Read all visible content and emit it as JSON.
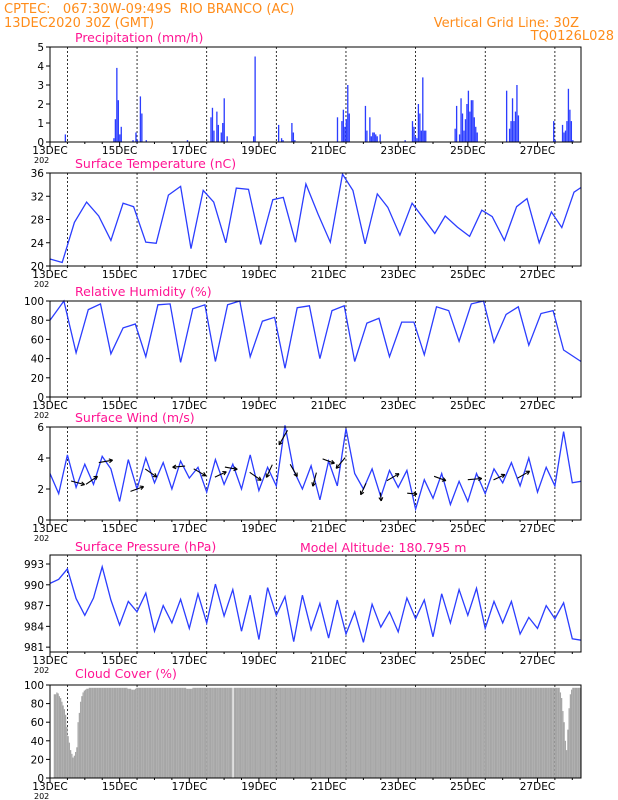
{
  "header": {
    "left_line1": "CPTEC:   067:30W-09:49S  RIO BRANCO (AC)",
    "left_line2": "13DEC2020 30Z (GMT)",
    "right_line1": "Vertical Grid Line: 30Z",
    "right_line2": "TQ0126L028",
    "color": "#ff8c1a"
  },
  "colors": {
    "title": "#ff1493",
    "series": "#2b3dff",
    "cloud": "#a6a6a6",
    "axis": "#000000",
    "grid": "#000000"
  },
  "x_axis": {
    "ticks": [
      "13DEC",
      "15DEC",
      "17DEC",
      "19DEC",
      "21DEC",
      "23DEC",
      "25DEC",
      "27DEC"
    ],
    "year_fragment": "202"
  },
  "chart_data": [
    {
      "type": "bar",
      "title": "Precipitation  (mm/h)",
      "ylim": [
        0,
        5
      ],
      "yticks": [
        "0",
        "1",
        "2",
        "3",
        "4",
        "5"
      ],
      "start": "13DEC 00Z",
      "end": "28DEC 06Z",
      "values": [
        0,
        0,
        0,
        0,
        0,
        0,
        0,
        0,
        0,
        0,
        0.4,
        0,
        0,
        0,
        0,
        0,
        0,
        0,
        0,
        0,
        0,
        0,
        0,
        0,
        0,
        0,
        0,
        0,
        0,
        0,
        0,
        0,
        0,
        0,
        0,
        0,
        0,
        0,
        0,
        0,
        0,
        0,
        0,
        0.2,
        1.2,
        3.9,
        2.2,
        0.4,
        0.8,
        0,
        0,
        0,
        0,
        0,
        0,
        0,
        0.1,
        0,
        0.5,
        0.1,
        0,
        2.4,
        1.5,
        0,
        0,
        0.1,
        0,
        0,
        0,
        0,
        0,
        0,
        0,
        0,
        0,
        0,
        0,
        0,
        0,
        0,
        0,
        0,
        0,
        0,
        0,
        0,
        0,
        0,
        0,
        0,
        0,
        0,
        0,
        0.1,
        0,
        0,
        0,
        0,
        0,
        0,
        0,
        0,
        0,
        0,
        0,
        0,
        0,
        0,
        0,
        1.3,
        1.8,
        0.6,
        0,
        1.6,
        0.9,
        0,
        0.5,
        1.0,
        2.3,
        0,
        0.3,
        0,
        0,
        0,
        0,
        0,
        0,
        0,
        0,
        0,
        0,
        0,
        0,
        0,
        0,
        0,
        0,
        0,
        0.3,
        4.5,
        0,
        0,
        0,
        0,
        0,
        0,
        0,
        0,
        0,
        0,
        0,
        0,
        0,
        0,
        0,
        0.9,
        0,
        0.2,
        0.1,
        0,
        0,
        0,
        0,
        0,
        1.0,
        0.5,
        0.1,
        0,
        0,
        0,
        0,
        0,
        0,
        0,
        0,
        0,
        0,
        0,
        0,
        0,
        0,
        0,
        0,
        0,
        0,
        0,
        0,
        0,
        0,
        0,
        0,
        0,
        0,
        0,
        0,
        1.3,
        0,
        0,
        1.1,
        1.7,
        0.8,
        1.2,
        3.0,
        1.5,
        0,
        0,
        0,
        0,
        0,
        0,
        0,
        0,
        0,
        0,
        1.9,
        0.6,
        0,
        1.3,
        0.3,
        0.5,
        0.5,
        0.4,
        0.3,
        0,
        0.4,
        0,
        0,
        0,
        0,
        0,
        0,
        0,
        0,
        0,
        0,
        0,
        0,
        0,
        0,
        0,
        0,
        0.1,
        0,
        0,
        0,
        0,
        1.1,
        0.8,
        0.3,
        0.2,
        2.0,
        1.5,
        0.6,
        3.4,
        0.6,
        0.6,
        0,
        0,
        0,
        0,
        0,
        0,
        0,
        0,
        0,
        0,
        0,
        0,
        0,
        0,
        0,
        0,
        0,
        0,
        0,
        0.7,
        1.9,
        0,
        0.4,
        2.3,
        1.5,
        0.6,
        1.2,
        2.0,
        2.7,
        1.6,
        2.2,
        2.2,
        1.3,
        0.8,
        0.5,
        0,
        0,
        0,
        0,
        0,
        0,
        0,
        0,
        0,
        0,
        0,
        0,
        0,
        0,
        0,
        0,
        0,
        0,
        0,
        2.7,
        0,
        0.7,
        1.1,
        2.3,
        1.1,
        1.6,
        3.0,
        1.4,
        0,
        0,
        0,
        0,
        0,
        0,
        0,
        0,
        0,
        0,
        0,
        0,
        0,
        0,
        0,
        0,
        0,
        0,
        0,
        0,
        0,
        0,
        0,
        1.1,
        0.1,
        0,
        0,
        0,
        0,
        0.9,
        0.5,
        0.6,
        1.1,
        2.8,
        1.7,
        1.1,
        0.1,
        0,
        0,
        0,
        0,
        0
      ]
    },
    {
      "type": "line",
      "title": "Surface Temperature  (nC)",
      "ylim": [
        20,
        36
      ],
      "yticks": [
        "20",
        "24",
        "28",
        "32",
        "36"
      ],
      "x_days": [
        0,
        0.35,
        0.7,
        1.05,
        1.4,
        1.75,
        2.1,
        2.4,
        2.75,
        3.05,
        3.4,
        3.75,
        4.05,
        4.4,
        4.7,
        5.05,
        5.35,
        5.7,
        6.05,
        6.4,
        6.7,
        7.05,
        7.35,
        7.7,
        8.05,
        8.4,
        8.7,
        9.05,
        9.4,
        9.7,
        10.05,
        10.4,
        10.7,
        11.05,
        11.35,
        11.7,
        12.05,
        12.4,
        12.7,
        13.05,
        13.4,
        13.7,
        14.05,
        14.4,
        14.7,
        15.05,
        15.25
      ],
      "values": [
        21.2,
        20.6,
        27.5,
        31.0,
        28.6,
        24.4,
        30.8,
        30.2,
        24.1,
        23.9,
        32.2,
        33.7,
        23.0,
        33.0,
        31.0,
        24.0,
        33.4,
        33.2,
        23.7,
        31.4,
        31.8,
        24.1,
        34.1,
        28.9,
        24.1,
        35.8,
        33.0,
        23.8,
        32.4,
        30.1,
        25.3,
        30.8,
        28.4,
        25.6,
        28.6,
        26.7,
        25.1,
        29.6,
        28.5,
        24.4,
        30.2,
        31.6,
        24.0,
        29.3,
        26.6,
        32.7,
        33.5
      ]
    },
    {
      "type": "line",
      "title": "Relative Humidity  (%)",
      "ylim": [
        0,
        100
      ],
      "yticks": [
        "0",
        "20",
        "40",
        "60",
        "80",
        "100"
      ],
      "x_days": [
        0,
        0.4,
        0.75,
        1.1,
        1.45,
        1.75,
        2.1,
        2.45,
        2.75,
        3.1,
        3.45,
        3.75,
        4.1,
        4.45,
        4.75,
        5.1,
        5.45,
        5.75,
        6.1,
        6.45,
        6.75,
        7.1,
        7.45,
        7.75,
        8.1,
        8.45,
        8.75,
        9.1,
        9.45,
        9.75,
        10.1,
        10.45,
        10.75,
        11.1,
        11.45,
        11.75,
        12.1,
        12.45,
        12.75,
        13.1,
        13.45,
        13.75,
        14.1,
        14.45,
        14.75,
        15.25
      ],
      "values": [
        80,
        100,
        46,
        91,
        97,
        45,
        72,
        76,
        42,
        96,
        97,
        36,
        92,
        96,
        37,
        96,
        100,
        42,
        79,
        83,
        30,
        93,
        95,
        40,
        90,
        95,
        37,
        77,
        82,
        42,
        78,
        78,
        44,
        94,
        90,
        58,
        97,
        100,
        57,
        86,
        94,
        54,
        87,
        90,
        49,
        37
      ]
    },
    {
      "type": "line",
      "title": "Surface Wind  (m/s)",
      "ylim": [
        0,
        6
      ],
      "yticks": [
        "0",
        "2",
        "4",
        "6"
      ],
      "x_days": [
        0,
        0.25,
        0.5,
        0.75,
        1.0,
        1.25,
        1.5,
        1.75,
        2.0,
        2.25,
        2.5,
        2.75,
        3.0,
        3.25,
        3.5,
        3.75,
        4.0,
        4.25,
        4.5,
        4.75,
        5.0,
        5.25,
        5.5,
        5.75,
        6.0,
        6.25,
        6.5,
        6.75,
        7.0,
        7.25,
        7.5,
        7.75,
        8.0,
        8.25,
        8.5,
        8.75,
        9.0,
        9.25,
        9.5,
        9.75,
        10.0,
        10.25,
        10.5,
        10.75,
        11.0,
        11.25,
        11.5,
        11.75,
        12.0,
        12.25,
        12.5,
        12.75,
        13.0,
        13.25,
        13.5,
        13.75,
        14.0,
        14.25,
        14.5,
        14.75,
        15.0,
        15.25
      ],
      "values": [
        3.0,
        1.7,
        4.2,
        2.1,
        3.6,
        2.3,
        4.1,
        3.3,
        1.2,
        3.9,
        2.0,
        4.0,
        2.4,
        3.7,
        2.0,
        3.8,
        2.7,
        3.4,
        1.8,
        3.9,
        2.3,
        3.6,
        2.0,
        4.2,
        1.9,
        3.4,
        2.2,
        6.1,
        3.2,
        2.0,
        3.5,
        1.3,
        3.8,
        2.2,
        5.9,
        3.0,
        2.0,
        3.3,
        1.5,
        3.2,
        2.1,
        3.2,
        0.7,
        2.6,
        1.4,
        3.0,
        1.0,
        2.5,
        1.2,
        3.0,
        1.7,
        3.3,
        2.4,
        3.7,
        2.2,
        4.0,
        1.8,
        3.4,
        2.2,
        5.7,
        2.4,
        2.5
      ],
      "arrows": [
        [
          0.8,
          285,
          1.0
        ],
        [
          1.2,
          235,
          1.0
        ],
        [
          1.6,
          260,
          1.0
        ],
        [
          2.5,
          250,
          1.0
        ],
        [
          2.9,
          305,
          1.0
        ],
        [
          3.7,
          85,
          0.9
        ],
        [
          4.3,
          300,
          1.0
        ],
        [
          4.9,
          245,
          0.9
        ],
        [
          5.2,
          280,
          0.9
        ],
        [
          5.9,
          305,
          1.0
        ],
        [
          6.3,
          25,
          1.0
        ],
        [
          6.7,
          30,
          1.2
        ],
        [
          7.0,
          330,
          1.0
        ],
        [
          7.6,
          15,
          1.0
        ],
        [
          8.0,
          290,
          0.9
        ],
        [
          8.35,
          40,
          1.0
        ],
        [
          9.0,
          25,
          0.9
        ],
        [
          9.5,
          355,
          0.6
        ],
        [
          9.85,
          240,
          1.0
        ],
        [
          10.4,
          275,
          0.7
        ],
        [
          11.2,
          290,
          0.9
        ],
        [
          12.2,
          265,
          1.0
        ],
        [
          12.9,
          245,
          0.9
        ],
        [
          13.6,
          240,
          1.0
        ]
      ]
    },
    {
      "type": "line",
      "title": "Surface Pressure  (hPa)",
      "ylim": [
        980.3,
        994.3
      ],
      "yticks": [
        "981",
        "984",
        "987",
        "990",
        "993"
      ],
      "x_days": [
        0,
        0.25,
        0.5,
        0.75,
        1.0,
        1.25,
        1.5,
        1.75,
        2.0,
        2.25,
        2.5,
        2.75,
        3.0,
        3.25,
        3.5,
        3.75,
        4.0,
        4.25,
        4.5,
        4.75,
        5.0,
        5.25,
        5.5,
        5.75,
        6.0,
        6.25,
        6.5,
        6.75,
        7.0,
        7.25,
        7.5,
        7.75,
        8.0,
        8.25,
        8.5,
        8.75,
        9.0,
        9.25,
        9.5,
        9.75,
        10.0,
        10.25,
        10.5,
        10.75,
        11.0,
        11.25,
        11.5,
        11.75,
        12.0,
        12.25,
        12.5,
        12.75,
        13.0,
        13.25,
        13.5,
        13.75,
        14.0,
        14.25,
        14.5,
        14.75,
        15.0,
        15.25
      ],
      "values": [
        990.2,
        990.8,
        992.3,
        988.0,
        985.6,
        988.1,
        992.6,
        987.8,
        984.2,
        987.6,
        986.1,
        988.8,
        983.3,
        987.0,
        984.5,
        987.9,
        983.7,
        988.7,
        984.5,
        990.1,
        985.5,
        989.3,
        983.3,
        988.5,
        982.1,
        989.6,
        985.6,
        988.3,
        981.8,
        988.5,
        983.5,
        987.3,
        982.3,
        987.8,
        982.9,
        986.1,
        981.7,
        987.2,
        983.9,
        986.1,
        983.2,
        988.1,
        985.1,
        987.8,
        982.5,
        988.7,
        984.5,
        989.3,
        985.6,
        989.5,
        983.7,
        987.6,
        984.5,
        987.6,
        982.9,
        985.3,
        983.7,
        987.0,
        985.1,
        987.4,
        982.2,
        982.0
      ]
    },
    {
      "type": "bar",
      "title": "Cloud Cover  (%)",
      "ylim": [
        0,
        100
      ],
      "yticks": [
        "0",
        "20",
        "40",
        "60",
        "80",
        "100"
      ],
      "start": "13DEC 00Z",
      "end": "28DEC 06Z",
      "values": [
        0,
        0,
        0,
        90,
        90,
        92,
        91,
        88,
        86,
        82,
        78,
        74,
        68,
        55,
        45,
        38,
        30,
        26,
        22,
        24,
        28,
        33,
        60,
        70,
        82,
        88,
        92,
        94,
        95,
        96,
        96,
        97,
        97,
        97,
        97,
        97,
        97,
        97,
        97,
        97,
        97,
        97,
        97,
        97,
        97,
        97,
        97,
        97,
        97,
        97,
        97,
        97,
        97,
        97,
        97,
        97,
        97,
        97,
        97,
        97,
        97,
        97,
        96,
        96,
        96,
        95,
        95,
        95,
        96,
        97,
        97,
        97,
        97,
        97,
        97,
        97,
        97,
        97,
        97,
        97,
        97,
        97,
        97,
        97,
        97,
        97,
        97,
        97,
        97,
        97,
        97,
        97,
        97,
        97,
        97,
        97,
        97,
        97,
        97,
        97,
        97,
        97,
        97,
        97,
        97,
        97,
        97,
        97,
        97,
        96,
        96,
        96,
        96,
        96,
        97,
        97,
        97,
        97,
        97,
        97,
        97,
        97,
        97,
        97,
        97,
        97,
        97,
        97,
        97,
        97,
        97,
        97,
        97,
        97,
        97,
        97,
        97,
        97,
        97,
        97,
        97,
        97,
        97,
        97,
        97,
        97,
        0,
        97,
        97,
        97,
        97,
        97,
        97,
        97,
        97,
        97,
        97,
        97,
        97,
        97,
        97,
        97,
        97,
        97,
        97,
        97,
        97,
        97,
        97,
        97,
        97,
        97,
        97,
        97,
        97,
        97,
        97,
        97,
        97,
        97,
        97,
        97,
        97,
        97,
        97,
        97,
        97,
        97,
        97,
        97,
        97,
        97,
        97,
        97,
        97,
        97,
        97,
        97,
        97,
        97,
        97,
        97,
        97,
        97,
        97,
        97,
        97,
        97,
        97,
        97,
        97,
        97,
        97,
        97,
        97,
        97,
        97,
        97,
        97,
        97,
        97,
        97,
        97,
        97,
        97,
        97,
        97,
        97,
        97,
        97,
        97,
        97,
        97,
        97,
        97,
        97,
        97,
        97,
        97,
        97,
        97,
        97,
        97,
        97,
        97,
        97,
        97,
        97,
        97,
        97,
        97,
        97,
        97,
        97,
        97,
        97,
        97,
        97,
        97,
        97,
        97,
        97,
        97,
        97,
        97,
        97,
        97,
        97,
        97,
        97,
        97,
        97,
        97,
        97,
        97,
        97,
        97,
        97,
        97,
        97,
        97,
        97,
        97,
        97,
        97,
        97,
        97,
        97,
        97,
        97,
        97,
        97,
        97,
        97,
        97,
        97,
        97,
        97,
        97,
        97,
        97,
        97,
        97,
        97,
        97,
        97,
        97,
        97,
        97,
        97,
        97,
        97,
        97,
        97,
        97,
        97,
        97,
        97,
        97,
        97,
        97,
        97,
        97,
        97,
        97,
        97,
        97,
        97,
        97,
        97,
        97,
        97,
        97,
        97,
        97,
        97,
        97,
        97,
        97,
        97,
        97,
        97,
        97,
        97,
        97,
        97,
        97,
        97,
        97,
        97,
        97,
        97,
        97,
        97,
        97,
        97,
        97,
        97,
        97,
        97,
        97,
        97,
        97,
        97,
        97,
        97,
        97,
        97,
        97,
        97,
        97,
        97,
        97,
        97,
        97,
        97,
        97,
        97,
        97,
        97,
        97,
        97,
        97,
        97,
        97,
        97,
        97,
        97,
        97,
        97,
        97,
        97,
        97,
        97,
        97,
        97,
        97,
        97,
        97,
        97,
        97,
        97,
        97,
        97,
        97,
        97,
        97,
        97,
        92,
        86,
        72,
        60,
        40,
        30,
        52,
        75,
        90,
        95,
        97,
        97,
        97,
        97,
        97,
        97,
        97
      ]
    }
  ],
  "annotation": "Model Altitude: 180.795 m"
}
